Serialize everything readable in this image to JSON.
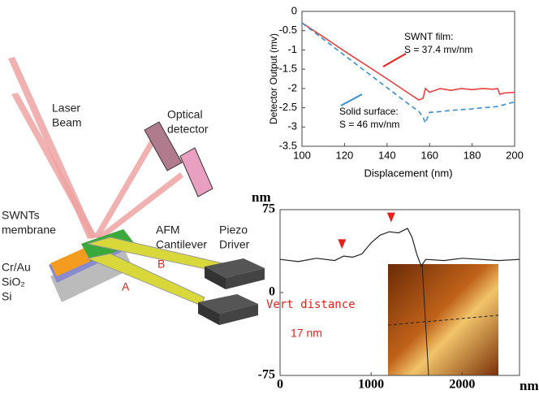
{
  "diagram": {
    "laser_beam": [
      "Laser",
      "Beam"
    ],
    "optical_detector": [
      "Optical",
      "detector"
    ],
    "membrane": [
      "SWNTs",
      "membrane"
    ],
    "cantilever": [
      "AFM",
      "Cantilever"
    ],
    "piezo": [
      "Piezo",
      "Driver"
    ],
    "layers": [
      "Cr/Au",
      "SiO₂",
      "Si"
    ],
    "cantilever_a": "A",
    "cantilever_b": "B"
  },
  "chart_data": [
    {
      "type": "line",
      "xlabel": "Displacement (nm)",
      "ylabel": "Detector Output (mv)",
      "x": [
        100,
        110,
        120,
        130,
        140,
        150,
        155,
        157,
        158,
        160,
        165,
        170,
        175,
        180,
        185,
        190,
        192,
        193,
        195,
        200
      ],
      "series": [
        {
          "color": "#e8413f",
          "dash": false,
          "values": [
            -0.3,
            -0.66,
            -1.03,
            -1.39,
            -1.75,
            -2.12,
            -2.3,
            -2.25,
            -2.0,
            -2.1,
            -2.0,
            -2.05,
            -2.0,
            -2.03,
            -2.0,
            -2.02,
            -2.0,
            -2.15,
            -2.12,
            -2.1
          ]
        },
        {
          "color": "#3b8fd0",
          "dash": true,
          "values": [
            -0.3,
            -0.72,
            -1.14,
            -1.56,
            -1.98,
            -2.4,
            -2.6,
            -2.75,
            -2.9,
            -2.62,
            -2.6,
            -2.57,
            -2.55,
            -2.53,
            -2.5,
            -2.48,
            -2.47,
            -2.45,
            -2.42,
            -2.35
          ]
        }
      ],
      "annotations": [
        [
          "SWNT film:",
          "S = 37.4 mv/nm"
        ],
        [
          "Solid surface:",
          "S = 46 mv/nm"
        ]
      ],
      "xlim": [
        100,
        200
      ],
      "xticks": [
        100,
        120,
        140,
        160,
        180,
        200
      ],
      "ylim": [
        -3.5,
        0
      ],
      "yticks": [
        0,
        -0.5,
        -1,
        -1.5,
        -2,
        -2.5,
        -3,
        -3.5
      ]
    },
    {
      "type": "line",
      "xlabel": "nm",
      "ylabel": "nm",
      "x": [
        0,
        200,
        400,
        600,
        700,
        800,
        900,
        1000,
        1100,
        1200,
        1300,
        1400,
        1450,
        1500,
        1550,
        1600,
        1800,
        2000,
        2200,
        2400,
        2630
      ],
      "series": [
        {
          "color": "#222222",
          "dash": false,
          "values": [
            30,
            28,
            31,
            29,
            33,
            32,
            35,
            45,
            52,
            55,
            54,
            58,
            50,
            35,
            24,
            30,
            29,
            31,
            30,
            29,
            30
          ]
        }
      ],
      "markers": {
        "x": [
          680,
          1220
        ],
        "y": [
          38,
          62
        ],
        "color": "#e8201c"
      },
      "inset": [
        "Vert distance",
        "17 nm"
      ],
      "xlim": [
        0,
        2630
      ],
      "xticks": [
        0,
        1000,
        2000
      ],
      "ylim": [
        -75,
        75
      ],
      "yticks": [
        75,
        0,
        -75
      ]
    }
  ]
}
